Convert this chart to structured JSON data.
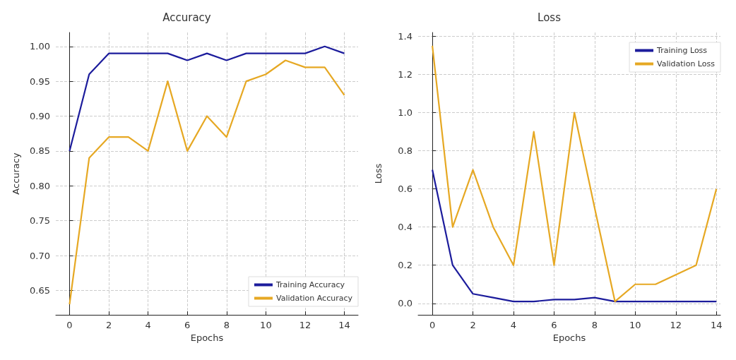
{
  "chart_data": [
    {
      "type": "line",
      "title": "Accuracy",
      "xlabel": "Epochs",
      "ylabel": "Accuracy",
      "x": [
        0,
        1,
        2,
        3,
        4,
        5,
        6,
        7,
        8,
        9,
        10,
        11,
        12,
        13,
        14
      ],
      "xlim": [
        -0.7,
        14.7
      ],
      "xticks": [
        0,
        2,
        4,
        6,
        8,
        10,
        12,
        14
      ],
      "ylim": [
        0.615,
        1.02
      ],
      "yticks": [
        0.65,
        {
          "value": 0.7,
          "label": "0.70"
        },
        0.75,
        {
          "value": 0.8,
          "label": "0.80"
        },
        0.85,
        {
          "value": 0.9,
          "label": "0.90"
        },
        0.95,
        {
          "value": 1,
          "label": "1.00"
        }
      ],
      "grid": true,
      "legend": "bottom right",
      "marker": "none",
      "series": [
        {
          "name": "Training Accuracy",
          "color": "#1c1c9c",
          "values": [
            0.85,
            0.96,
            0.99,
            0.99,
            0.99,
            0.99,
            0.98,
            0.99,
            0.98,
            0.99,
            0.99,
            0.99,
            0.99,
            1.0,
            0.99
          ]
        },
        {
          "name": "Validation Accuracy",
          "color": "#e6a823",
          "values": [
            0.63,
            0.84,
            0.87,
            0.87,
            0.85,
            0.95,
            0.85,
            0.9,
            0.87,
            0.95,
            0.96,
            0.98,
            0.97,
            0.97,
            0.93
          ]
        }
      ]
    },
    {
      "type": "line",
      "title": "Loss",
      "xlabel": "Epochs",
      "ylabel": "Loss",
      "x": [
        0,
        1,
        2,
        3,
        4,
        5,
        6,
        7,
        8,
        9,
        10,
        11,
        12,
        13,
        14
      ],
      "xlim": [
        -0.7,
        14.2
      ],
      "xticks": [
        0,
        2,
        4,
        6,
        8,
        10,
        12,
        14
      ],
      "ylim": [
        -0.06,
        1.42
      ],
      "yticks": [
        {
          "value": 0,
          "label": "0.0"
        },
        0.2,
        0.4,
        0.6,
        0.8,
        {
          "value": 1,
          "label": "1.0"
        },
        1.2,
        1.4
      ],
      "grid": true,
      "legend": "top right",
      "marker": "none",
      "series": [
        {
          "name": "Training Loss",
          "color": "#1c1c9c",
          "values": [
            0.7,
            0.2,
            0.05,
            0.03,
            0.01,
            0.01,
            0.02,
            0.02,
            0.03,
            0.01,
            0.01,
            0.01,
            0.01,
            0.01,
            0.01
          ]
        },
        {
          "name": "Validation Loss",
          "color": "#e6a823",
          "values": [
            1.35,
            0.4,
            0.7,
            0.4,
            0.2,
            0.9,
            0.2,
            1.0,
            0.5,
            0.01,
            0.1,
            0.1,
            0.15,
            0.2,
            0.6
          ]
        }
      ]
    }
  ]
}
